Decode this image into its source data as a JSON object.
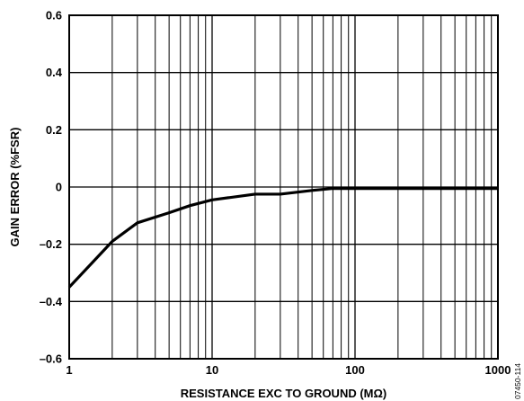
{
  "chart_data": {
    "type": "line",
    "title": "",
    "xlabel": "RESISTANCE EXC TO GROUND (MΩ)",
    "ylabel": "GAIN ERROR (%FSR)",
    "x_scale": "log",
    "xlim": [
      1,
      1000
    ],
    "ylim": [
      -0.6,
      0.6
    ],
    "x_ticks": [
      1,
      10,
      100,
      1000
    ],
    "x_tick_labels": [
      "1",
      "10",
      "100",
      "1000"
    ],
    "y_ticks": [
      -0.6,
      -0.4,
      -0.2,
      0,
      0.2,
      0.4,
      0.6
    ],
    "y_tick_labels": [
      "–0.6",
      "–0.4",
      "–0.2",
      "0",
      "0.2",
      "0.4",
      "0.6"
    ],
    "grid": true,
    "series": [
      {
        "x": [
          1,
          2,
          3,
          5,
          7,
          10,
          20,
          30,
          50,
          70,
          100,
          200,
          500,
          1000
        ],
        "y": [
          -0.35,
          -0.19,
          -0.125,
          -0.09,
          -0.065,
          -0.045,
          -0.025,
          -0.025,
          -0.012,
          -0.005,
          -0.005,
          -0.005,
          -0.005,
          -0.005
        ]
      }
    ],
    "figure_id": "07450-114"
  }
}
